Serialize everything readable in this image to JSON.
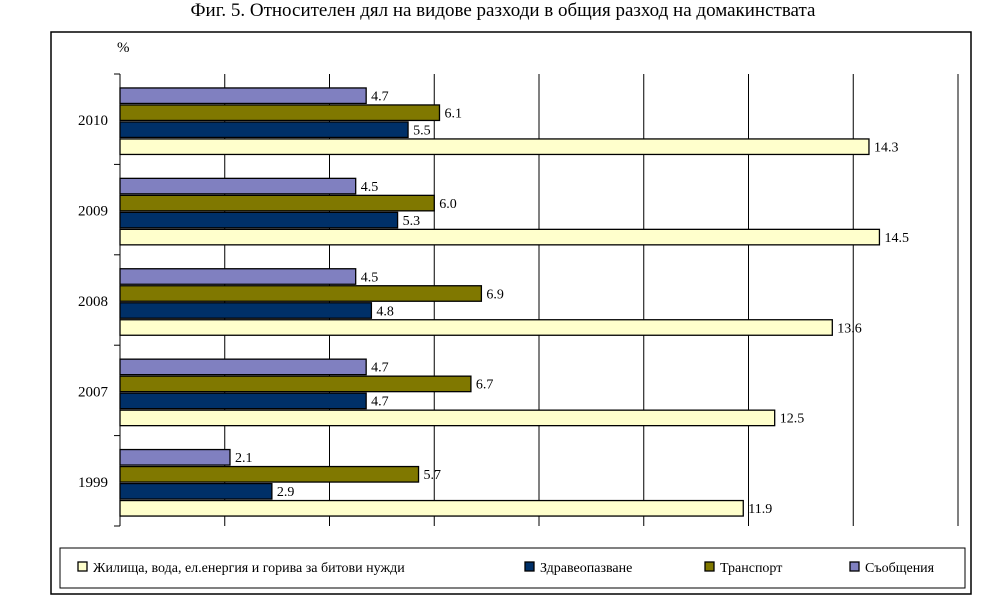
{
  "title": "Фиг. 5. Относителен дял на видове разходи в общия разход на домакинствата",
  "chart_data": {
    "type": "bar",
    "orientation": "horizontal",
    "title": "Фиг. 5. Относителен дял на видове разходи в общия разход на домакинствата",
    "unit_label": "%",
    "categories": [
      "2010",
      "2009",
      "2008",
      "2007",
      "1999"
    ],
    "xlim": [
      0,
      16
    ],
    "grid": true,
    "legend_position": "bottom",
    "series": [
      {
        "name": "Съобщения",
        "color": "#8080c0",
        "values": [
          4.7,
          4.5,
          4.5,
          4.7,
          2.1
        ],
        "labels": [
          "4.7",
          "4.5",
          "4.5",
          "4.7",
          "2.1"
        ]
      },
      {
        "name": "Транспорт",
        "color": "#807800",
        "values": [
          6.1,
          6.0,
          6.9,
          6.7,
          5.7
        ],
        "labels": [
          "6.1",
          "6.0",
          "6.9",
          "6.7",
          "5.7"
        ]
      },
      {
        "name": "Здравеопазване",
        "color": "#003068",
        "values": [
          5.5,
          5.3,
          4.8,
          4.7,
          2.9
        ],
        "labels": [
          "5.5",
          "5.3",
          "4.8",
          "4.7",
          "2.9"
        ]
      },
      {
        "name": "Жилища, вода, ел.енергия и горива за битови нужди",
        "color": "#ffffcc",
        "values": [
          14.3,
          14.5,
          13.6,
          12.5,
          11.9
        ],
        "labels": [
          "14.3",
          "14.5",
          "13.6",
          "12.5",
          "11.9"
        ]
      }
    ],
    "legend_order": [
      3,
      2,
      1,
      0
    ]
  }
}
